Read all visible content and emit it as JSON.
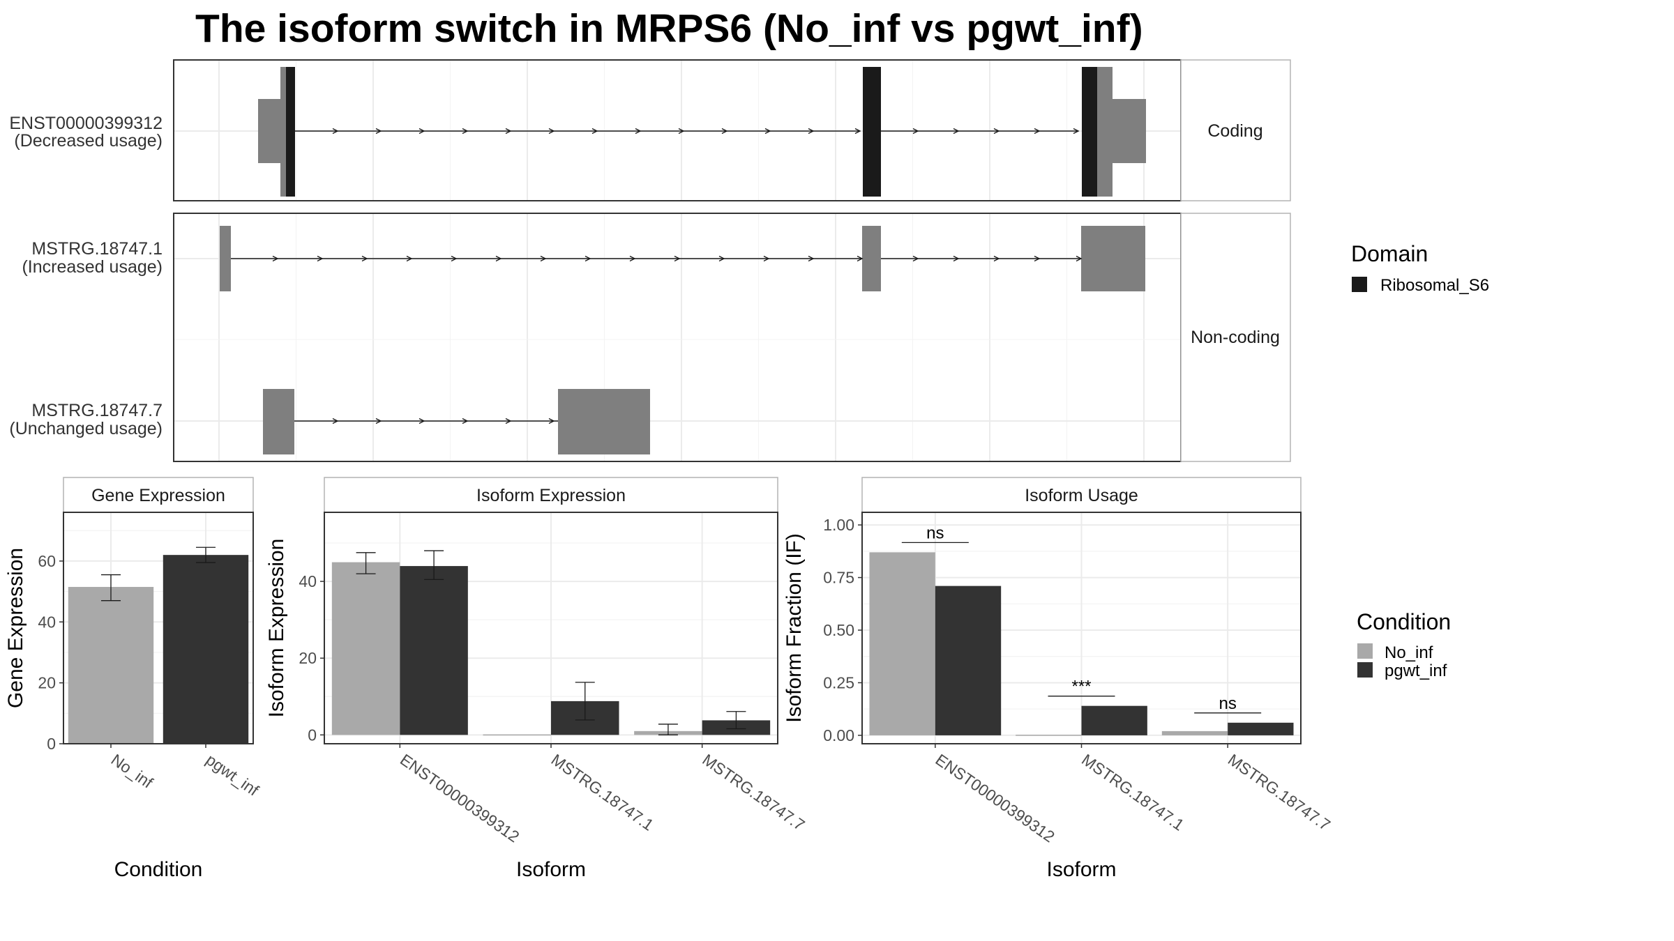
{
  "title": "The isoform switch in MRPS6 (No_inf vs pgwt_inf)",
  "colors": {
    "domain": "#1a1a1a",
    "exon": "#7f7f7f",
    "no_inf": "#a9a9a9",
    "pgwt_inf": "#333333",
    "grid": "#ebebeb",
    "panel_border": "#333333",
    "strip_border": "#b3b3b3"
  },
  "structure": {
    "groups": [
      {
        "label": "Coding"
      },
      {
        "label": "Non-coding"
      }
    ],
    "isoforms": [
      {
        "id": "ENST00000399312",
        "usage": "(Decreased usage)",
        "group": 0
      },
      {
        "id": "MSTRG.18747.1",
        "usage": "(Increased usage)",
        "group": 1
      },
      {
        "id": "MSTRG.18747.7",
        "usage": "(Unchanged usage)",
        "group": 1
      }
    ],
    "legend": {
      "title": "Domain",
      "items": [
        {
          "label": "Ribosomal_S6",
          "color": "#1a1a1a"
        }
      ]
    }
  },
  "chart_data": [
    {
      "type": "bar",
      "title": "Gene Expression",
      "xlabel": "Condition",
      "ylabel": "Gene Expression",
      "categories": [
        "No_inf",
        "pgwt_inf"
      ],
      "values": [
        51.5,
        62
      ],
      "errors": [
        [
          47,
          55.5
        ],
        [
          59.5,
          64.5
        ]
      ],
      "ylim": [
        0,
        76
      ],
      "yticks": [
        0,
        20,
        40,
        60
      ]
    },
    {
      "type": "bar",
      "title": "Isoform Expression",
      "xlabel": "Isoform",
      "ylabel": "Isoform Expression",
      "categories": [
        "ENST00000399312",
        "MSTRG.18747.1",
        "MSTRG.18747.7"
      ],
      "series": [
        {
          "name": "No_inf",
          "values": [
            45,
            0,
            1
          ],
          "errors": [
            [
              42,
              47.5
            ],
            [
              0,
              0
            ],
            [
              0,
              2.8
            ]
          ]
        },
        {
          "name": "pgwt_inf",
          "values": [
            44,
            8.8,
            3.8
          ],
          "errors": [
            [
              40.5,
              48
            ],
            [
              3.9,
              13.7
            ],
            [
              1.6,
              6.1
            ]
          ]
        }
      ],
      "ylim": [
        -2.3,
        58
      ],
      "yticks": [
        0,
        20,
        40
      ]
    },
    {
      "type": "bar",
      "title": "Isoform Usage",
      "xlabel": "Isoform",
      "ylabel": "Isoform Fraction (IF)",
      "categories": [
        "ENST00000399312",
        "MSTRG.18747.1",
        "MSTRG.18747.7"
      ],
      "series": [
        {
          "name": "No_inf",
          "values": [
            0.87,
            0.0,
            0.02
          ]
        },
        {
          "name": "pgwt_inf",
          "values": [
            0.71,
            0.14,
            0.06
          ]
        }
      ],
      "significance": [
        "ns",
        "***",
        "ns"
      ],
      "ylim": [
        -0.04,
        1.06
      ],
      "yticks": [
        "0.00",
        "0.25",
        "0.50",
        "0.75",
        "1.00"
      ]
    }
  ],
  "condition_legend": {
    "title": "Condition",
    "items": [
      {
        "label": "No_inf",
        "color": "#a9a9a9"
      },
      {
        "label": "pgwt_inf",
        "color": "#333333"
      }
    ]
  }
}
